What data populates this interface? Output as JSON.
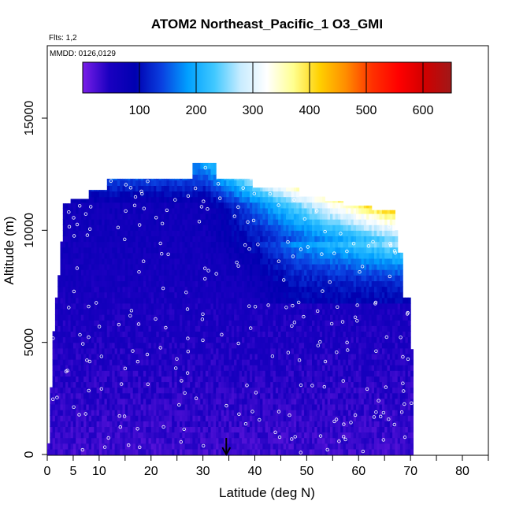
{
  "chart_data": {
    "type": "heatmap",
    "title": "ATOM2 Northeast_Pacific_1 O3_GMI",
    "subtitle_flights": "Flts: 1,2",
    "subtitle_dates": "MMDD: 0126,0129",
    "xlabel": "Latitude (deg N)",
    "ylabel": "Altitude (m)",
    "xlim": [
      0,
      85
    ],
    "ylim": [
      0,
      17500
    ],
    "x_ticks": [
      0,
      5,
      10,
      20,
      30,
      40,
      50,
      60,
      70,
      80
    ],
    "x_tick_labels": [
      "0",
      "5",
      "10",
      "20",
      "30",
      "40",
      "50",
      "60",
      "70",
      "80"
    ],
    "y_ticks": [
      0,
      5000,
      10000,
      15000
    ],
    "y_tick_labels": [
      "0",
      "5000",
      "10000",
      "15000"
    ],
    "colorbar": {
      "min": 0,
      "max": 650,
      "ticks": [
        100,
        200,
        300,
        400,
        500,
        600
      ],
      "tick_labels": [
        "100",
        "200",
        "300",
        "400",
        "500",
        "600"
      ],
      "colors": [
        "#7a1ee8",
        "#1a00c0",
        "#0000b0",
        "#0a40e0",
        "#00a0ff",
        "#40c8ff",
        "#c8ecff",
        "#ffffff",
        "#ffff90",
        "#ffd000",
        "#ff8c00",
        "#ff3000",
        "#ff0000",
        "#d00000",
        "#a01818"
      ]
    },
    "column_profile": {
      "description_note": "",
      "columns": [
        {
          "lat": 0.5,
          "top": 500
        },
        {
          "lat": 1.0,
          "top": 3000
        },
        {
          "lat": 1.5,
          "top": 5500
        },
        {
          "lat": 2.0,
          "top": 7000
        },
        {
          "lat": 2.5,
          "top": 8000
        },
        {
          "lat": 3.0,
          "top": 9500
        },
        {
          "lat": 3.5,
          "top": 11200
        },
        {
          "lat": 5.0,
          "top": 11400
        },
        {
          "lat": 8.5,
          "top": 11800
        },
        {
          "lat": 12.0,
          "top": 12300
        },
        {
          "lat": 27.0,
          "top": 12300
        },
        {
          "lat": 28.5,
          "top": 13000
        },
        {
          "lat": 33.0,
          "top": 12300
        },
        {
          "lat": 40.0,
          "top": 11900
        },
        {
          "lat": 49.0,
          "top": 11500
        },
        {
          "lat": 54.0,
          "top": 11300
        },
        {
          "lat": 57.5,
          "top": 11100
        },
        {
          "lat": 63.0,
          "top": 10900
        },
        {
          "lat": 67.5,
          "top": 10000
        },
        {
          "lat": 68.0,
          "top": 9000
        },
        {
          "lat": 69.0,
          "top": 7000
        },
        {
          "lat": 70.5,
          "top": 4700
        },
        {
          "lat": 71.2,
          "top": 0
        }
      ]
    },
    "marker": {
      "lat": 34.5,
      "label": ""
    }
  }
}
